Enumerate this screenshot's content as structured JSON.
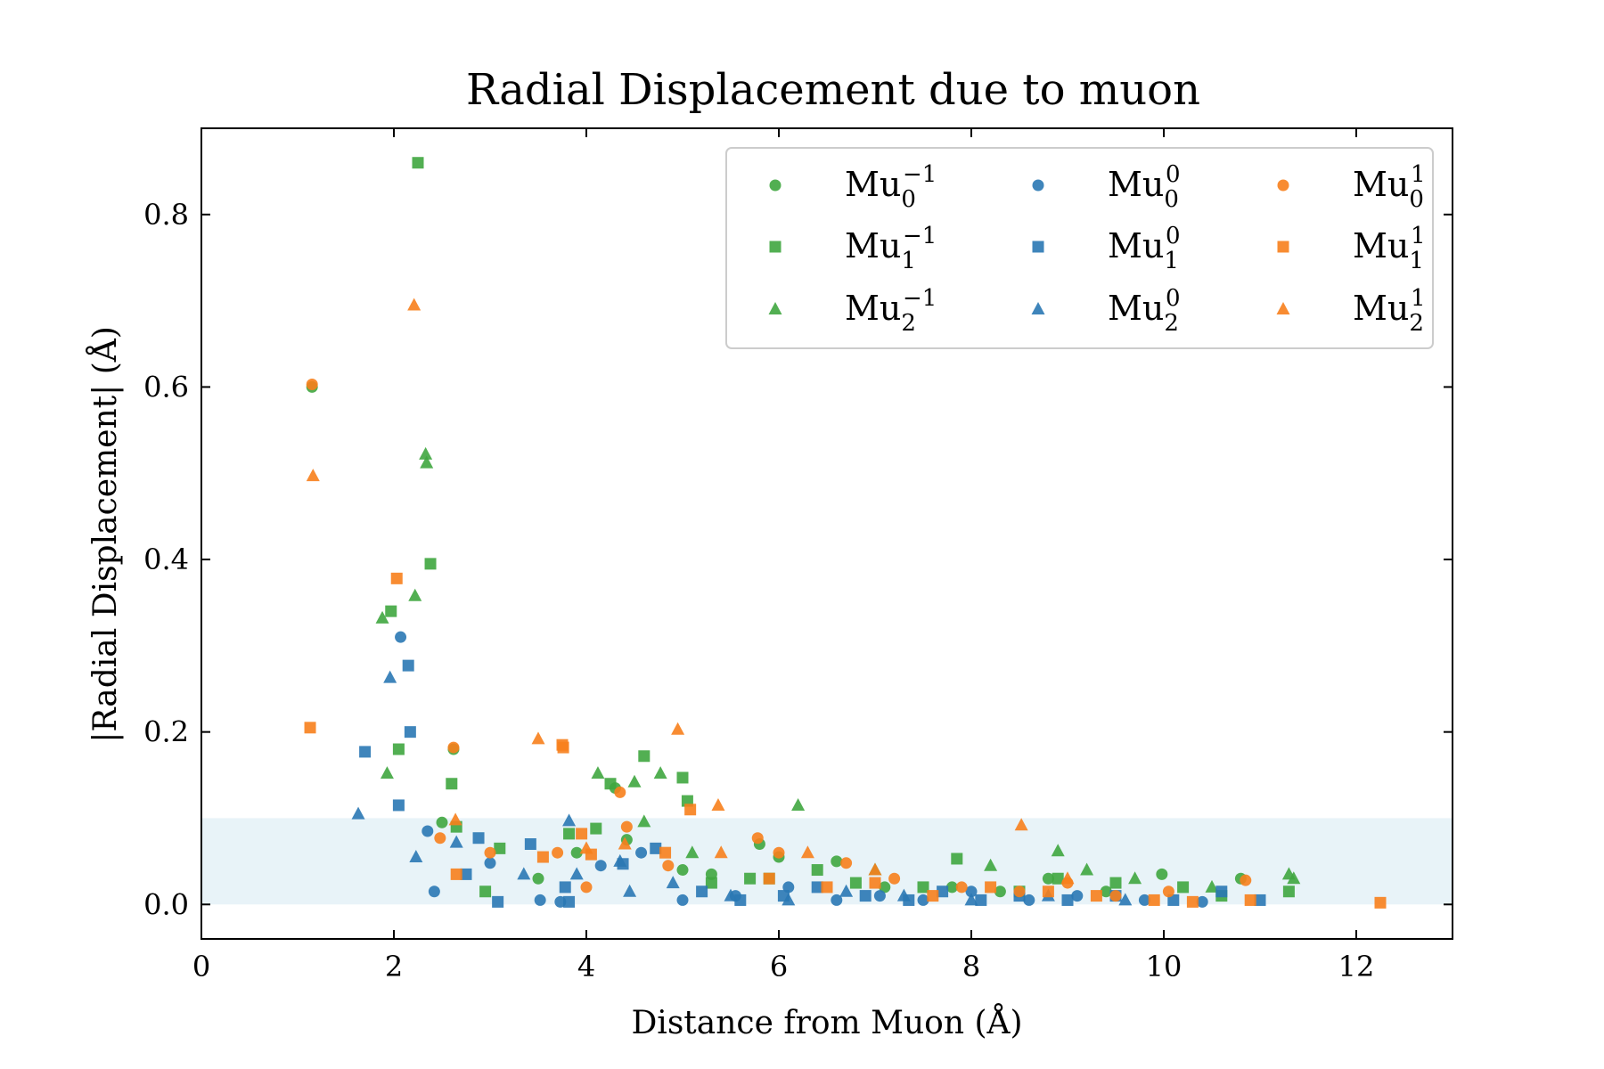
{
  "chart_data": {
    "type": "scatter",
    "title": "Radial Displacement due to muon",
    "xlabel": "Distance from Muon (Å)",
    "ylabel": "|Radial Displacement| (Å)",
    "xlim": [
      0,
      13
    ],
    "ylim": [
      -0.04,
      0.9
    ],
    "xticks": [
      "0",
      "2",
      "4",
      "6",
      "8",
      "10",
      "12"
    ],
    "xtick_values": [
      0,
      2,
      4,
      6,
      8,
      10,
      12
    ],
    "yticks": [
      "0.0",
      "0.2",
      "0.4",
      "0.6",
      "0.8"
    ],
    "ytick_values": [
      0,
      0.2,
      0.4,
      0.6,
      0.8
    ],
    "grid": false,
    "legend_position": "top-right",
    "shaded_band": {
      "y_from": 0.0,
      "y_to": 0.1,
      "color": "#d8ebf3"
    },
    "colors": {
      "-1": "#3fa63f",
      "0": "#2a78b4",
      "1": "#f7801c"
    },
    "markers": {
      "0": "circle",
      "1": "square",
      "2": "triangle"
    },
    "series": [
      {
        "name": "Mu_0^-1",
        "base": "Mu",
        "sub": "0",
        "sup": "−1",
        "charge": "-1",
        "marker": "0",
        "x": [
          1.15,
          2.5,
          2.62,
          3.5,
          3.9,
          4.3,
          4.42,
          5.0,
          5.3,
          5.8,
          6.0,
          6.6,
          7.1,
          7.8,
          8.3,
          8.8,
          9.4,
          9.98,
          10.8
        ],
        "y": [
          0.6,
          0.095,
          0.18,
          0.03,
          0.06,
          0.135,
          0.075,
          0.04,
          0.035,
          0.07,
          0.055,
          0.05,
          0.02,
          0.02,
          0.015,
          0.03,
          0.015,
          0.035,
          0.03
        ]
      },
      {
        "name": "Mu_1^-1",
        "base": "Mu",
        "sub": "1",
        "sup": "−1",
        "charge": "-1",
        "marker": "1",
        "x": [
          2.25,
          2.38,
          1.97,
          2.05,
          2.6,
          2.65,
          2.95,
          3.1,
          3.82,
          4.1,
          4.25,
          4.6,
          5.0,
          5.05,
          5.3,
          5.7,
          5.9,
          6.4,
          6.8,
          7.5,
          7.85,
          8.5,
          8.9,
          9.5,
          10.2,
          10.6,
          11.3
        ],
        "y": [
          0.86,
          0.395,
          0.34,
          0.18,
          0.14,
          0.09,
          0.015,
          0.065,
          0.082,
          0.088,
          0.14,
          0.172,
          0.147,
          0.12,
          0.025,
          0.03,
          0.03,
          0.04,
          0.025,
          0.02,
          0.053,
          0.015,
          0.03,
          0.025,
          0.02,
          0.01,
          0.015
        ]
      },
      {
        "name": "Mu_2^-1",
        "base": "Mu",
        "sub": "2",
        "sup": "−1",
        "charge": "-1",
        "marker": "2",
        "x": [
          2.33,
          2.34,
          2.22,
          1.88,
          1.93,
          4.12,
          4.5,
          4.6,
          4.77,
          5.1,
          6.2,
          7.0,
          8.2,
          8.9,
          9.2,
          9.7,
          10.5,
          11.3,
          11.35
        ],
        "y": [
          0.522,
          0.512,
          0.358,
          0.332,
          0.152,
          0.152,
          0.142,
          0.096,
          0.152,
          0.06,
          0.115,
          0.04,
          0.045,
          0.062,
          0.04,
          0.03,
          0.02,
          0.035,
          0.03
        ]
      },
      {
        "name": "Mu_0^0",
        "base": "Mu",
        "sub": "0",
        "sup": "0",
        "charge": "0",
        "marker": "0",
        "x": [
          2.07,
          2.35,
          2.42,
          3.0,
          3.52,
          3.73,
          4.15,
          4.57,
          5.0,
          5.55,
          6.1,
          6.6,
          7.05,
          7.5,
          8.0,
          8.6,
          9.1,
          9.8,
          10.4
        ],
        "y": [
          0.31,
          0.085,
          0.015,
          0.048,
          0.005,
          0.003,
          0.045,
          0.06,
          0.005,
          0.01,
          0.02,
          0.005,
          0.01,
          0.005,
          0.015,
          0.005,
          0.01,
          0.005,
          0.003
        ]
      },
      {
        "name": "Mu_1^0",
        "base": "Mu",
        "sub": "1",
        "sup": "0",
        "charge": "0",
        "marker": "1",
        "x": [
          2.15,
          2.17,
          1.7,
          2.05,
          2.75,
          2.88,
          3.08,
          3.42,
          3.78,
          3.82,
          4.38,
          4.72,
          5.2,
          5.6,
          6.05,
          6.4,
          6.9,
          7.35,
          7.7,
          8.1,
          8.5,
          9.0,
          9.5,
          10.1,
          10.6,
          11.0
        ],
        "y": [
          0.277,
          0.2,
          0.177,
          0.115,
          0.035,
          0.077,
          0.003,
          0.07,
          0.02,
          0.003,
          0.047,
          0.065,
          0.015,
          0.005,
          0.01,
          0.02,
          0.01,
          0.005,
          0.015,
          0.005,
          0.01,
          0.005,
          0.01,
          0.005,
          0.015,
          0.005
        ]
      },
      {
        "name": "Mu_2^0",
        "base": "Mu",
        "sub": "2",
        "sup": "0",
        "charge": "0",
        "marker": "2",
        "x": [
          1.96,
          1.63,
          2.23,
          2.65,
          3.35,
          3.82,
          3.9,
          4.35,
          4.45,
          4.9,
          5.5,
          6.1,
          6.7,
          7.3,
          8.0,
          8.8,
          9.6
        ],
        "y": [
          0.263,
          0.105,
          0.055,
          0.072,
          0.035,
          0.097,
          0.035,
          0.05,
          0.015,
          0.025,
          0.01,
          0.005,
          0.015,
          0.01,
          0.005,
          0.01,
          0.005
        ]
      },
      {
        "name": "Mu_0^1",
        "base": "Mu",
        "sub": "0",
        "sup": "1",
        "charge": "1",
        "marker": "0",
        "x": [
          1.15,
          2.62,
          2.48,
          3.0,
          3.7,
          4.0,
          4.35,
          4.42,
          4.85,
          5.78,
          6.0,
          6.7,
          7.2,
          7.9,
          8.5,
          9.0,
          9.5,
          10.05,
          10.85
        ],
        "y": [
          0.603,
          0.182,
          0.077,
          0.06,
          0.06,
          0.02,
          0.13,
          0.09,
          0.045,
          0.077,
          0.06,
          0.048,
          0.03,
          0.02,
          0.015,
          0.025,
          0.01,
          0.015,
          0.028
        ]
      },
      {
        "name": "Mu_1^1",
        "base": "Mu",
        "sub": "1",
        "sup": "1",
        "charge": "1",
        "marker": "1",
        "x": [
          1.13,
          2.03,
          3.75,
          3.76,
          3.95,
          4.05,
          4.82,
          5.08,
          2.65,
          3.55,
          5.9,
          6.5,
          7.0,
          7.6,
          8.2,
          8.8,
          9.3,
          9.9,
          10.3,
          10.9,
          12.25
        ],
        "y": [
          0.205,
          0.378,
          0.185,
          0.182,
          0.082,
          0.058,
          0.06,
          0.11,
          0.035,
          0.055,
          0.03,
          0.02,
          0.025,
          0.01,
          0.02,
          0.015,
          0.01,
          0.005,
          0.003,
          0.005,
          0.002
        ]
      },
      {
        "name": "Mu_2^1",
        "base": "Mu",
        "sub": "2",
        "sup": "1",
        "charge": "1",
        "marker": "2",
        "x": [
          1.16,
          2.21,
          3.5,
          4.95,
          5.37,
          2.64,
          4.0,
          4.4,
          5.4,
          6.3,
          7.0,
          8.52,
          9.0
        ],
        "y": [
          0.497,
          0.695,
          0.192,
          0.203,
          0.115,
          0.098,
          0.065,
          0.07,
          0.06,
          0.06,
          0.04,
          0.092,
          0.03
        ]
      }
    ]
  }
}
